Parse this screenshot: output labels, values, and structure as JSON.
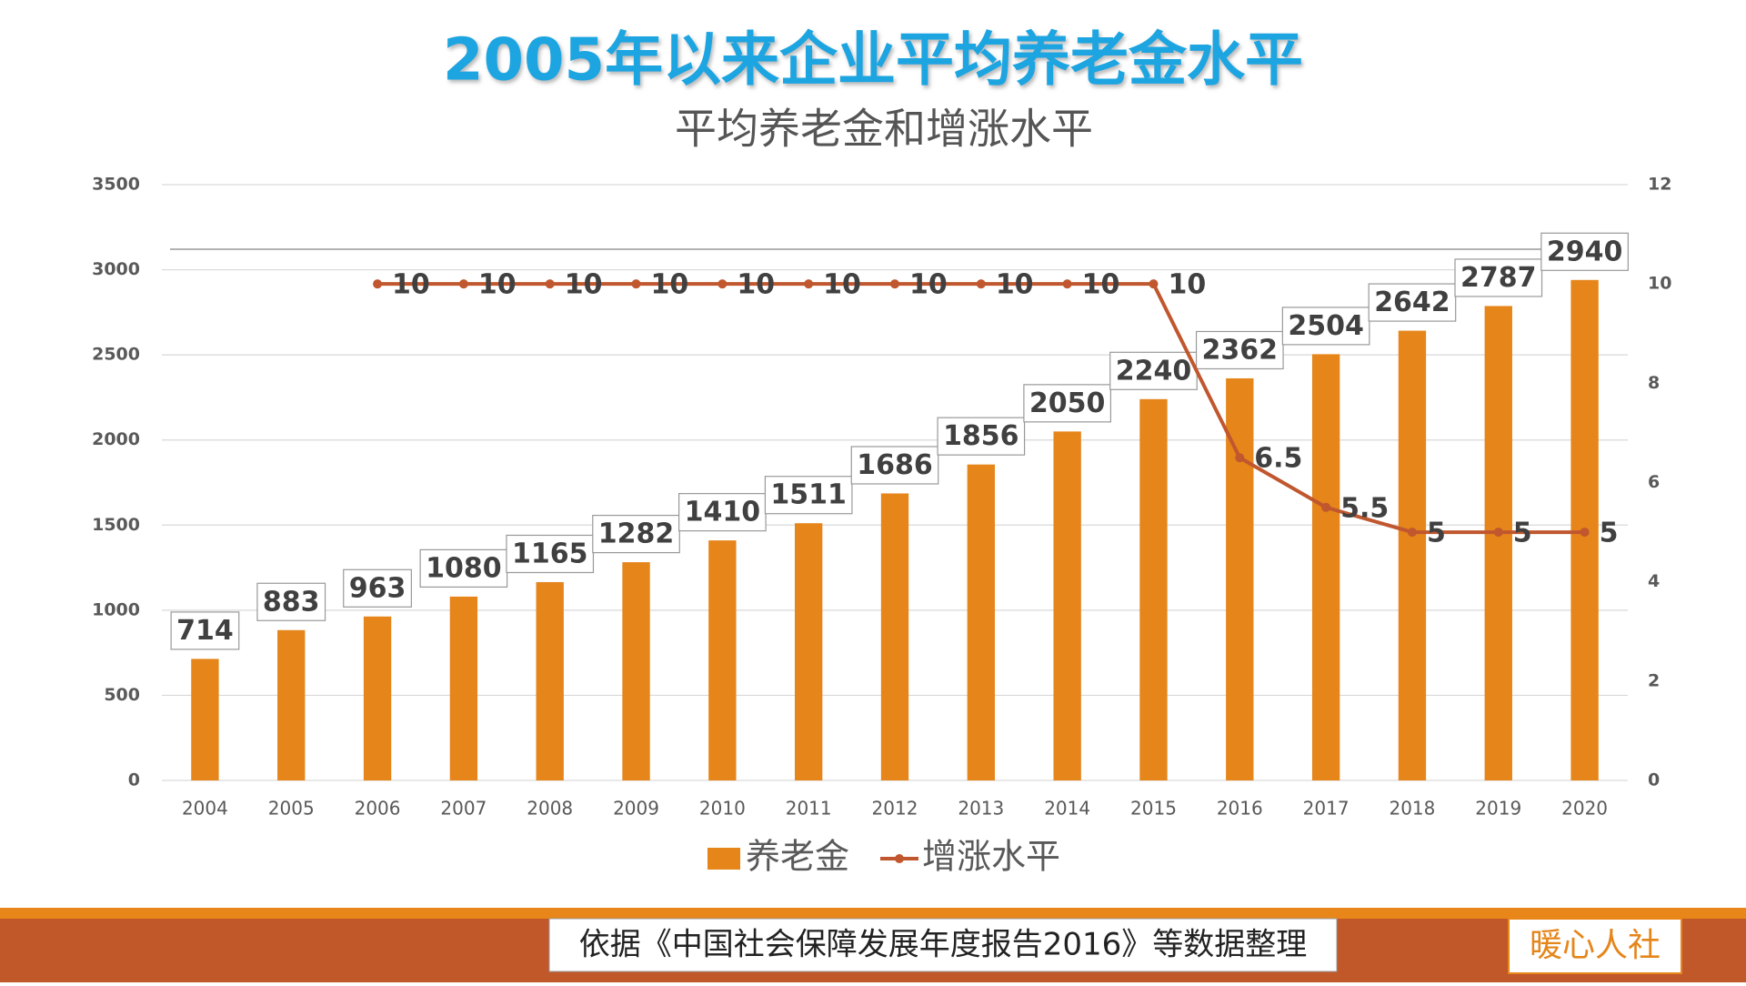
{
  "header": {
    "title": "2005年以来企业平均养老金水平"
  },
  "chart_data": {
    "type": "bar",
    "title": "平均养老金和增涨水平",
    "categories": [
      "2004",
      "2005",
      "2006",
      "2007",
      "2008",
      "2009",
      "2010",
      "2011",
      "2012",
      "2013",
      "2014",
      "2015",
      "2016",
      "2017",
      "2018",
      "2019",
      "2020"
    ],
    "series": [
      {
        "name": "养老金",
        "type": "bar",
        "color": "#e5851a",
        "values": [
          714,
          883,
          963,
          1080,
          1165,
          1282,
          1410,
          1511,
          1686,
          1856,
          2050,
          2240,
          2362,
          2504,
          2642,
          2787,
          2940
        ]
      },
      {
        "name": "增涨水平",
        "type": "line",
        "axis": "y2",
        "color": "#c0572e",
        "values": [
          null,
          null,
          10,
          10,
          10,
          10,
          10,
          10,
          10,
          10,
          10,
          10,
          6.5,
          5.5,
          5,
          5,
          5
        ]
      }
    ],
    "ylim": [
      0,
      3500
    ],
    "yticks": [
      0,
      500,
      1000,
      1500,
      2000,
      2500,
      3000,
      3500
    ],
    "y2lim": [
      0,
      12
    ],
    "y2ticks": [
      0,
      2,
      4,
      6,
      8,
      10,
      12
    ],
    "grid": true,
    "legend": "bottom"
  },
  "footer": {
    "source": "依据《中国社会保障发展年度报告2016》等数据整理",
    "brand": "暖心人社"
  }
}
